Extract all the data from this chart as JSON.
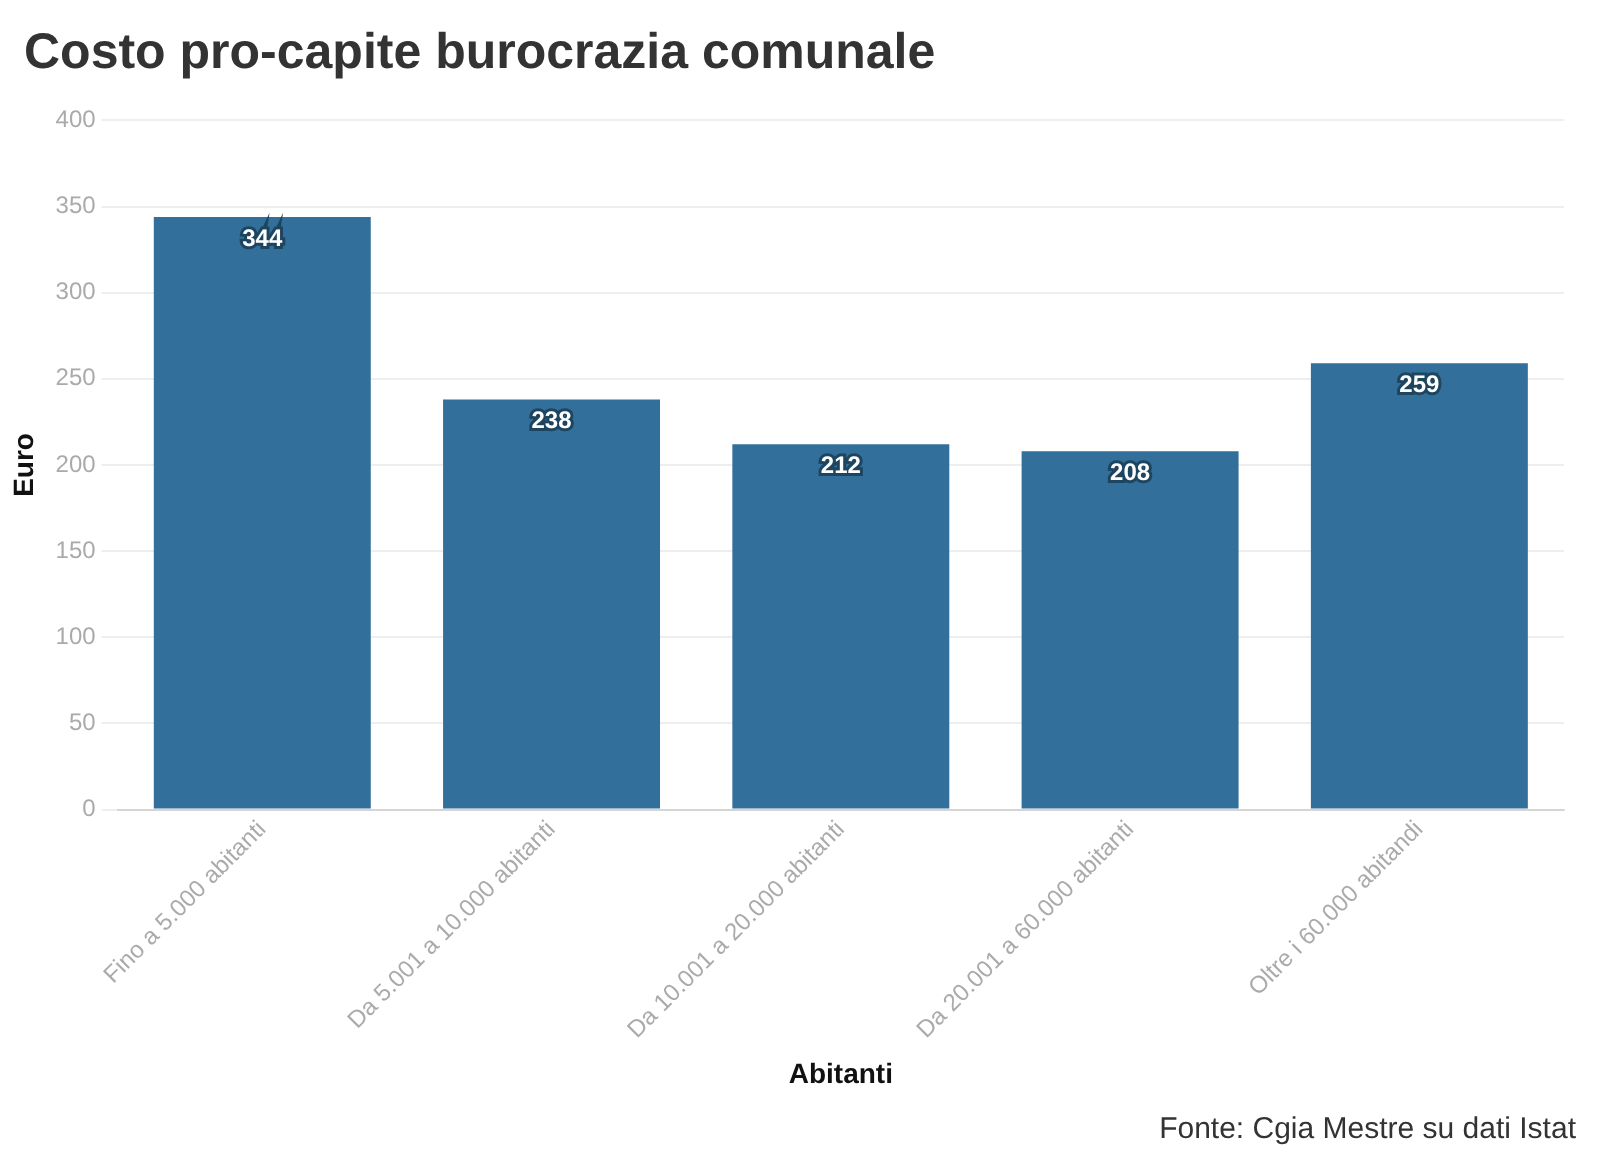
{
  "chart_data": {
    "type": "bar",
    "title": "Costo pro-capite burocrazia comunale",
    "xlabel": "Abitanti",
    "ylabel": "Euro",
    "categories": [
      "Fino a 5.000 abitanti",
      "Da 5.001 a 10.000 abitanti",
      "Da 10.001 a 20.000 abitanti",
      "Da 20.001 a 60.000 abitanti",
      "Oltre i 60.000 abitandi"
    ],
    "values": [
      344,
      238,
      212,
      208,
      259
    ],
    "color": "#326f9a",
    "data_labels": true,
    "ylim": [
      0,
      400
    ],
    "yticks": [
      0,
      50,
      100,
      150,
      200,
      250,
      300,
      350,
      400
    ],
    "grid": "y",
    "annotations": [
      "Fonte: Cgia Mestre su dati Istat"
    ]
  }
}
